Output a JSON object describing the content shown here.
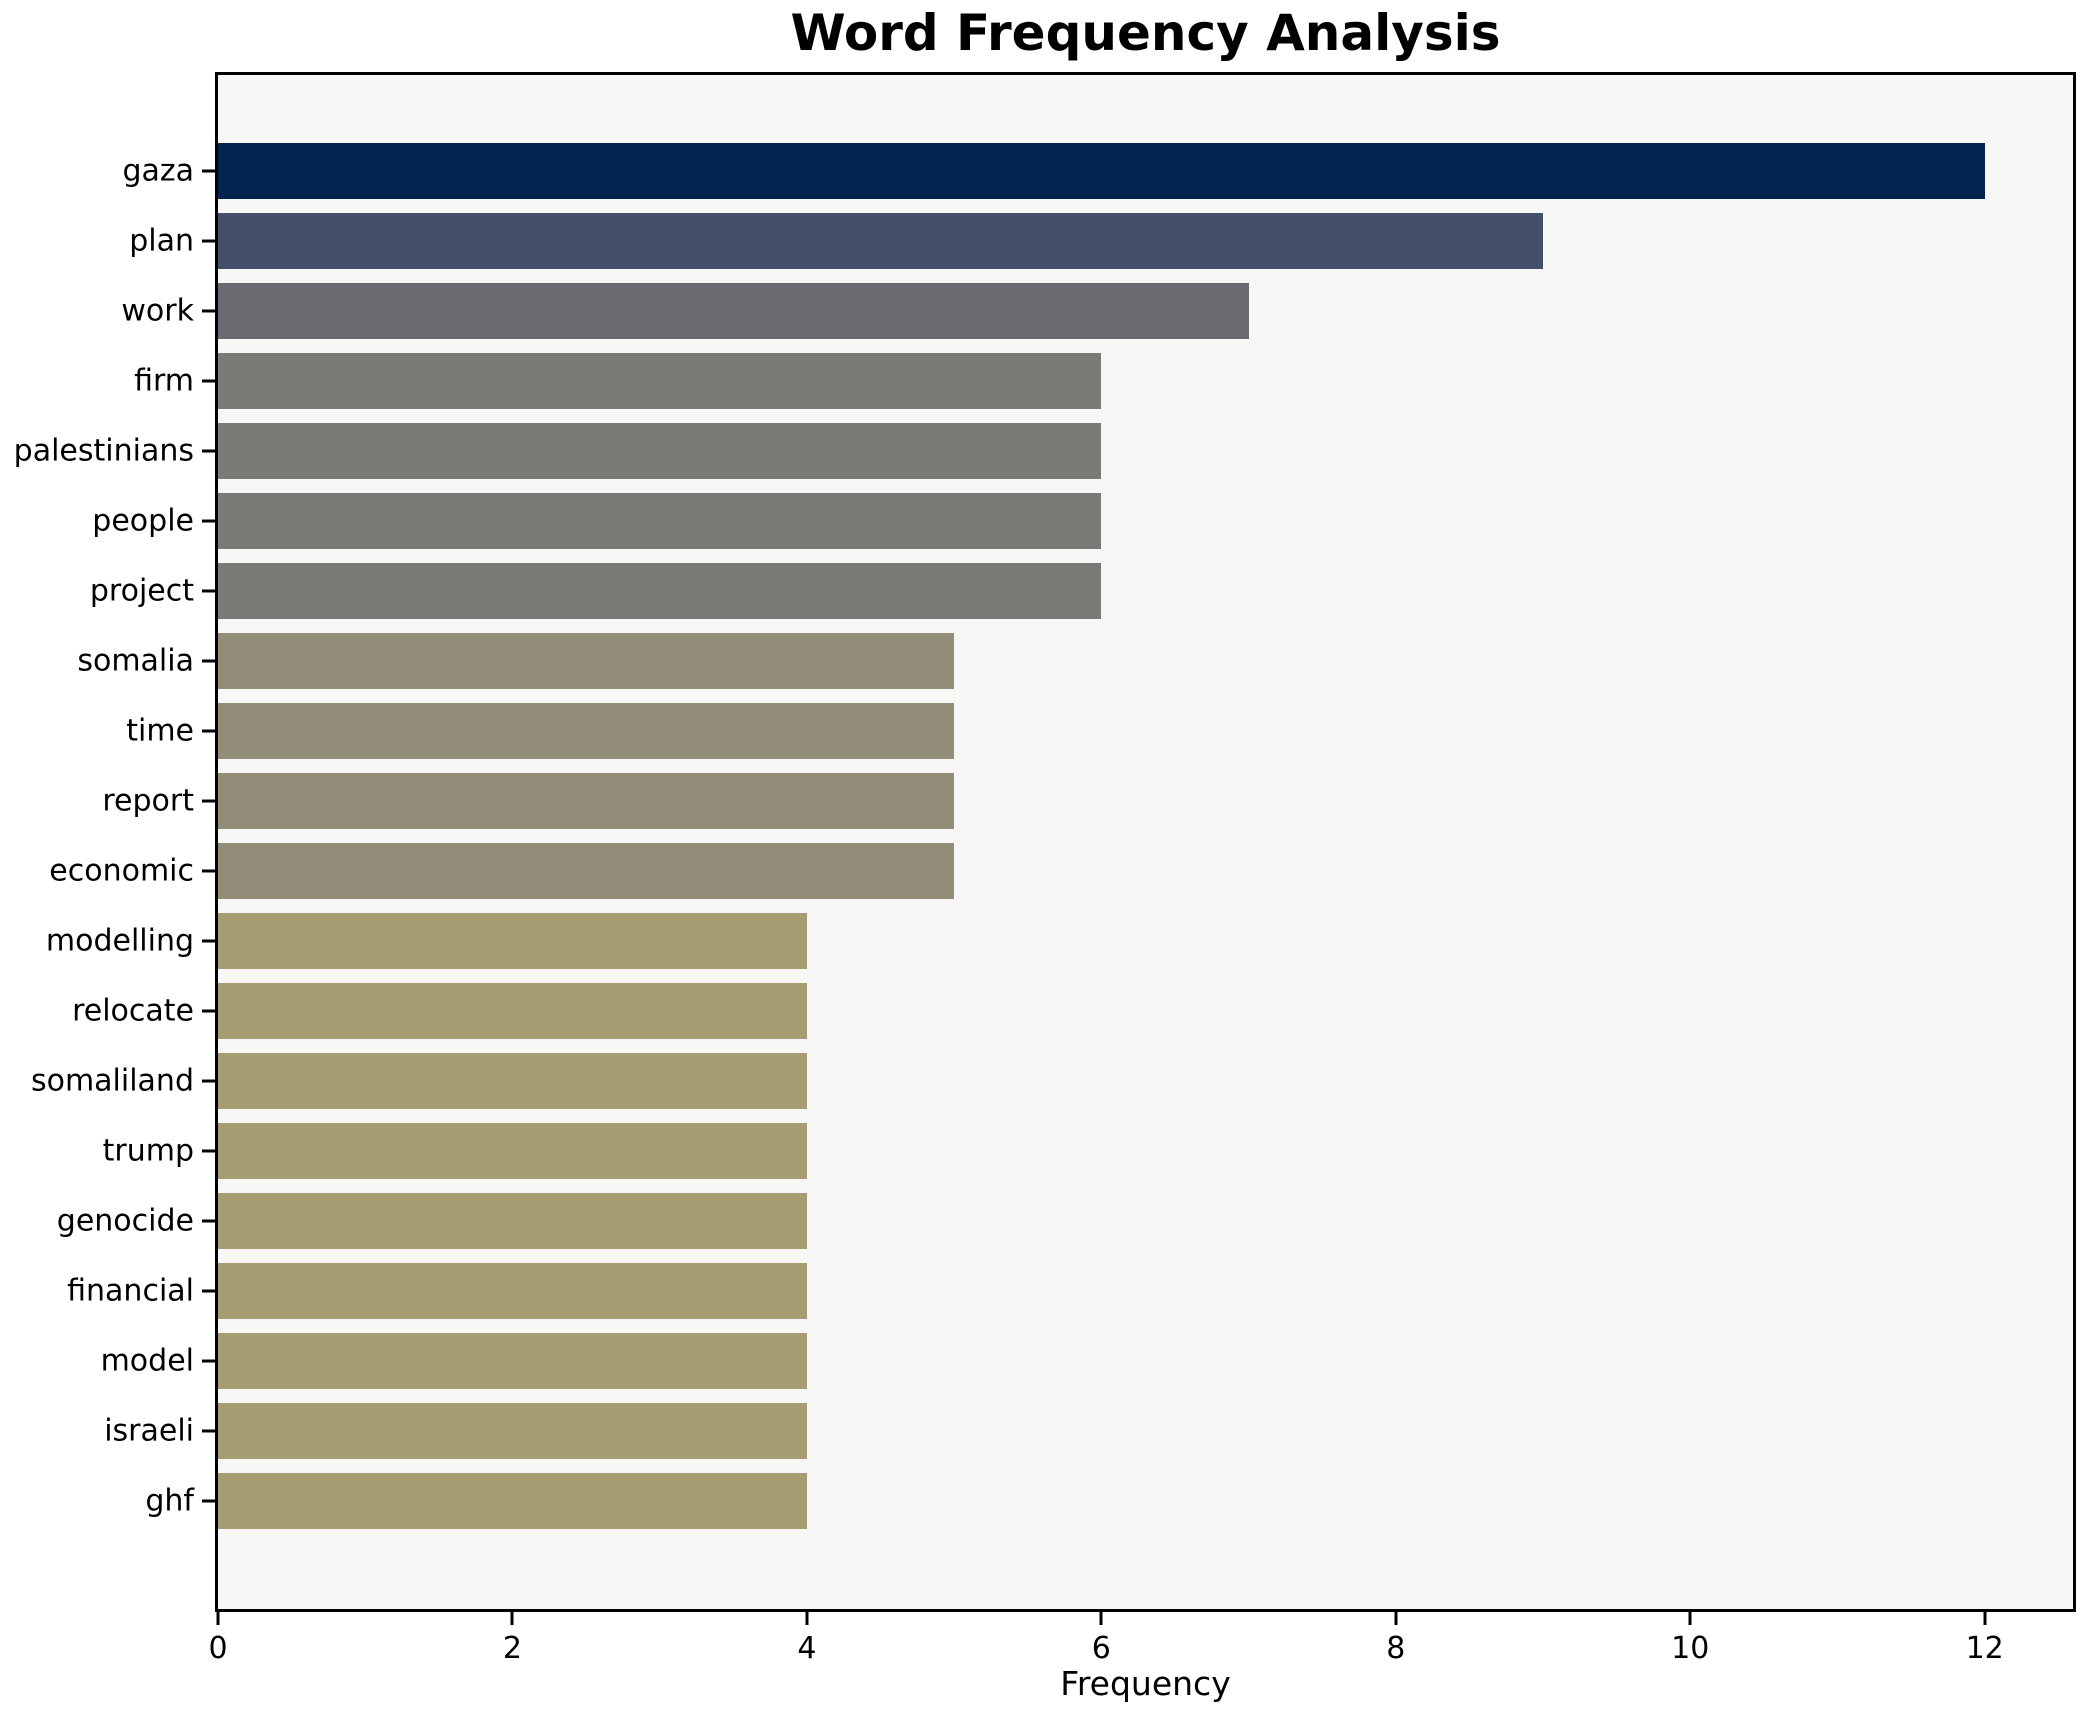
{
  "chart_data": {
    "type": "bar",
    "orientation": "horizontal",
    "title": "Word Frequency Analysis",
    "xlabel": "Frequency",
    "ylabel": "",
    "categories": [
      "gaza",
      "plan",
      "work",
      "firm",
      "palestinians",
      "people",
      "project",
      "somalia",
      "time",
      "report",
      "economic",
      "modelling",
      "relocate",
      "somaliland",
      "trump",
      "genocide",
      "financial",
      "model",
      "israeli",
      "ghf"
    ],
    "values": [
      12,
      9,
      7,
      6,
      6,
      6,
      6,
      5,
      5,
      5,
      5,
      4,
      4,
      4,
      4,
      4,
      4,
      4,
      4,
      4
    ],
    "bar_colors": [
      "#03234e",
      "#445069",
      "#696b70",
      "#7b7a76",
      "#7b7a76",
      "#7b7a76",
      "#7b7a76",
      "#918d79",
      "#918d79",
      "#918d79",
      "#918d79",
      "#a79d72",
      "#a79d72",
      "#a79d72",
      "#a79d72",
      "#a79d72",
      "#a79d72",
      "#a79d72",
      "#a79d72",
      "#a79d72"
    ],
    "xlim": [
      0,
      12.6
    ],
    "x_ticks": [
      0,
      2,
      4,
      6,
      8,
      10,
      12
    ],
    "grid": false,
    "legend": null,
    "plot_background": "#f7f7f5",
    "figure_background": "#ffffff"
  }
}
